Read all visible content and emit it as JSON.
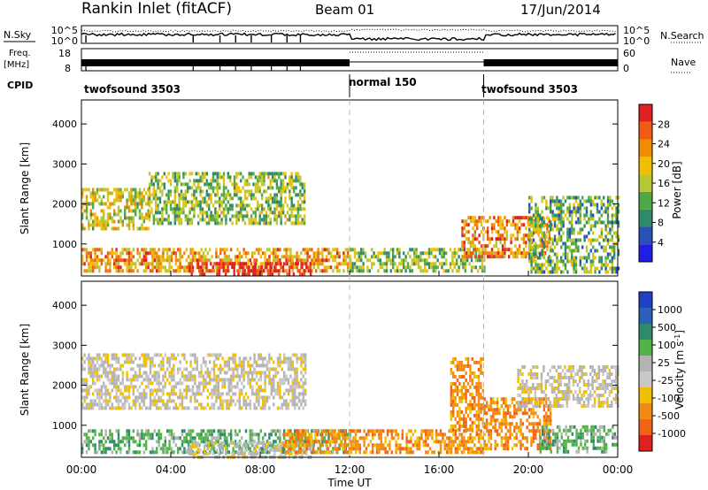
{
  "header": {
    "title": "Rankin Inlet (fitACF)",
    "beam": "Beam 01",
    "date": "17/Jun/2014"
  },
  "top_panels": {
    "nsky_label": "N.Sky",
    "nsky_ticks": [
      "10^5",
      "10^0"
    ],
    "nsearch_label": "N.Search",
    "nsearch_ticks": [
      "10^5",
      "10^0"
    ],
    "freq_label": "Freq.",
    "freq_unit": "[MHz]",
    "freq_ticks": [
      "18",
      "8"
    ],
    "nave_label": "Nave",
    "nave_ticks": [
      "60",
      "0"
    ],
    "cpid_label": "CPID",
    "cpid_segments": [
      {
        "label": "twofsound 3503",
        "start_h": 0,
        "end_h": 12
      },
      {
        "label": "normal 150",
        "start_h": 12,
        "end_h": 18
      },
      {
        "label": "twofsound 3503",
        "start_h": 18,
        "end_h": 24
      }
    ]
  },
  "chart_data": [
    {
      "type": "heatmap",
      "name": "power",
      "ylabel": "Slant Range [km]",
      "xlim": [
        0,
        24
      ],
      "ylim": [
        200,
        4600
      ],
      "yticks": [
        "1000",
        "2000",
        "3000",
        "4000"
      ],
      "colorbar_label": "Power [dB]",
      "colorbar_ticks": [
        "4",
        "8",
        "12",
        "16",
        "20",
        "24",
        "28"
      ],
      "colorbar_colors": [
        "#1e1ee6",
        "#2a4fb8",
        "#2f8a6a",
        "#4eaa46",
        "#b4c832",
        "#f0c000",
        "#f08c00",
        "#f05a14",
        "#e02020"
      ],
      "regions": [
        {
          "t0": 0.0,
          "t1": 3.0,
          "r0": 1400,
          "r1": 2400,
          "level": 0.55
        },
        {
          "t0": 3.0,
          "t1": 10.0,
          "r0": 1500,
          "r1": 2800,
          "level": 0.45
        },
        {
          "t0": 0.0,
          "t1": 12.0,
          "r0": 350,
          "r1": 900,
          "level": 0.7
        },
        {
          "t0": 4.7,
          "t1": 10.3,
          "r0": 200,
          "r1": 550,
          "level": 1.0
        },
        {
          "t0": 12.0,
          "t1": 18.0,
          "r0": 300,
          "r1": 900,
          "level": 0.45
        },
        {
          "t0": 17.0,
          "t1": 21.0,
          "r0": 700,
          "r1": 1700,
          "level": 0.75
        },
        {
          "t0": 20.0,
          "t1": 24.0,
          "r0": 300,
          "r1": 2200,
          "level": 0.4
        }
      ]
    },
    {
      "type": "heatmap",
      "name": "velocity",
      "ylabel": "Slant Range [km]",
      "xlabel": "Time UT",
      "xlim": [
        0,
        24
      ],
      "ylim": [
        200,
        4600
      ],
      "yticks": [
        "1000",
        "2000",
        "3000",
        "4000"
      ],
      "xticks": [
        "00:00",
        "04:00",
        "08:00",
        "12:00",
        "16:00",
        "20:00",
        "00:00"
      ],
      "colorbar_label": "Velocity [m s^-1]",
      "colorbar_ticks": [
        "1000",
        "500",
        "100",
        "25",
        "-25",
        "-100",
        "-500",
        "-1000"
      ],
      "colorbar_colors": [
        "#2040c8",
        "#2a60b8",
        "#2f8a6a",
        "#52b446",
        "#b4b4b4",
        "#c8c8c8",
        "#f0c000",
        "#f08c14",
        "#f06414",
        "#e02020"
      ],
      "regions": [
        {
          "t0": 0.0,
          "t1": 10.0,
          "r0": 1400,
          "r1": 2800,
          "level": "gray"
        },
        {
          "t0": 0.0,
          "t1": 12.0,
          "r0": 300,
          "r1": 900,
          "level": "green"
        },
        {
          "t0": 4.7,
          "t1": 10.3,
          "r0": 200,
          "r1": 600,
          "level": "gray"
        },
        {
          "t0": 9.0,
          "t1": 18.0,
          "r0": 300,
          "r1": 900,
          "level": "orange"
        },
        {
          "t0": 16.5,
          "t1": 18.0,
          "r0": 900,
          "r1": 2700,
          "level": "orange"
        },
        {
          "t0": 18.0,
          "t1": 21.0,
          "r0": 400,
          "r1": 1700,
          "level": "orange"
        },
        {
          "t0": 19.5,
          "t1": 24.0,
          "r0": 1500,
          "r1": 2500,
          "level": "gray"
        },
        {
          "t0": 20.5,
          "t1": 24.0,
          "r0": 300,
          "r1": 1000,
          "level": "green"
        }
      ]
    }
  ]
}
